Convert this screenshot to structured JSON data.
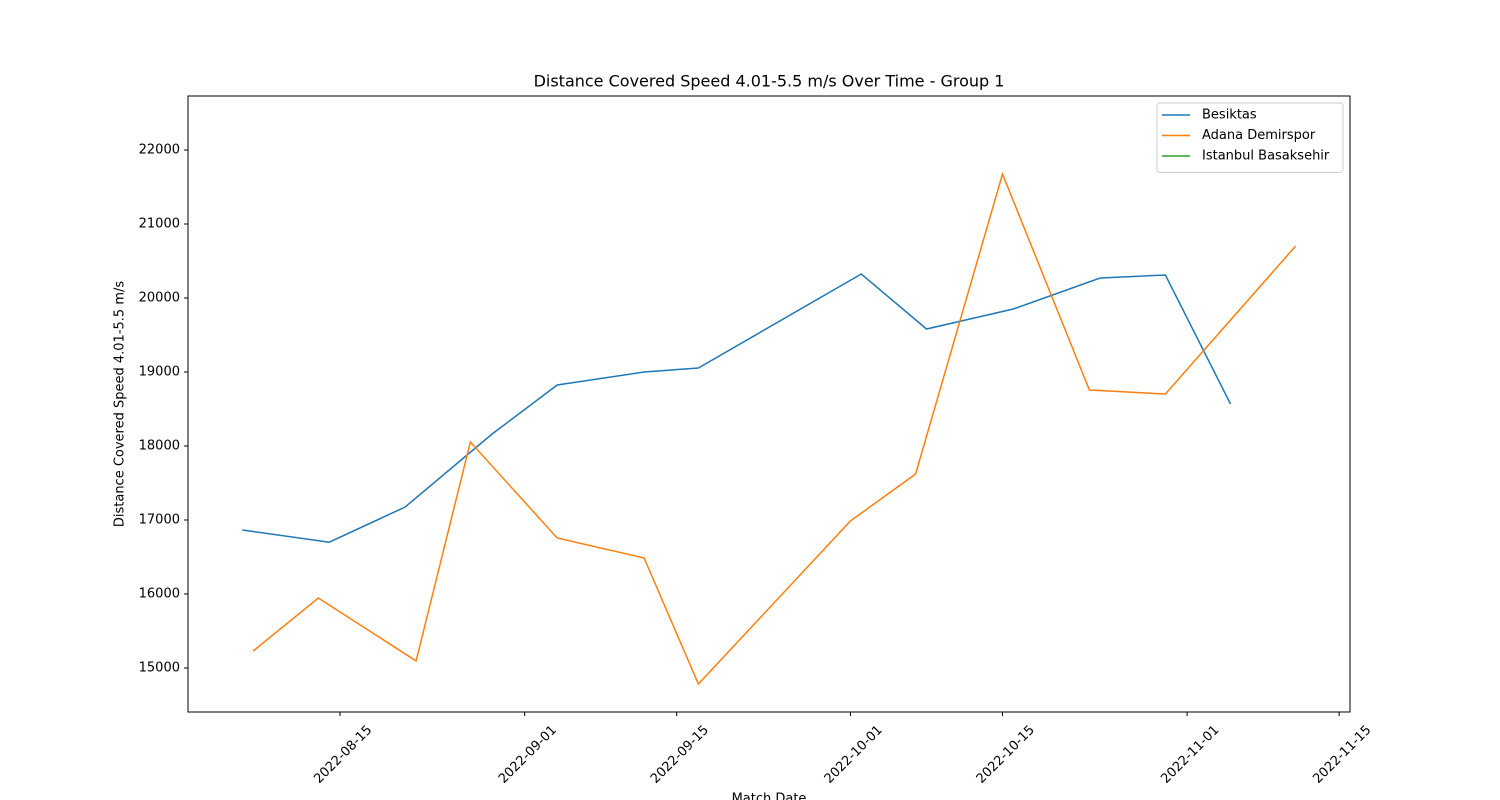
{
  "chart_data": {
    "type": "line",
    "title": "Distance Covered Speed 4.01-5.5 m/s Over Time - Group 1",
    "x_label": "Match Date",
    "y_label": "Distance Covered Speed 4.01-5.5 m/s",
    "xlim": [
      "2022-08-01",
      "2022-11-16"
    ],
    "xticks": [
      "2022-08-15",
      "2022-09-01",
      "2022-09-15",
      "2022-10-01",
      "2022-10-15",
      "2022-11-01",
      "2022-11-15"
    ],
    "ylim": [
      14405,
      22730
    ],
    "yticks": [
      15000,
      16000,
      17000,
      18000,
      19000,
      20000,
      21000,
      22000
    ],
    "legend": "upper right",
    "series": [
      {
        "name": "Besiktas",
        "color": "#1f77b4",
        "x": [
          "2022-08-06",
          "2022-08-14",
          "2022-08-21",
          "2022-08-29",
          "2022-09-04",
          "2022-09-12",
          "2022-09-17",
          "2022-10-02",
          "2022-10-08",
          "2022-10-16",
          "2022-10-24",
          "2022-10-30",
          "2022-11-05"
        ],
        "values": [
          16865,
          16700,
          17176,
          18162,
          18824,
          19000,
          19054,
          20324,
          19581,
          19851,
          20270,
          20311,
          18568
        ]
      },
      {
        "name": "Adana Demirspor",
        "color": "#ff7f0e",
        "x": [
          "2022-08-07",
          "2022-08-13",
          "2022-08-22",
          "2022-08-27",
          "2022-09-04",
          "2022-09-12",
          "2022-09-17",
          "2022-10-01",
          "2022-10-07",
          "2022-10-15",
          "2022-10-23",
          "2022-10-30",
          "2022-11-11"
        ],
        "values": [
          15230,
          15946,
          15095,
          18054,
          16757,
          16486,
          14784,
          16986,
          17622,
          21676,
          18757,
          18703,
          20703
        ]
      },
      {
        "name": "Istanbul Basaksehir",
        "color": "#2ca02c",
        "x": [],
        "values": []
      }
    ]
  }
}
